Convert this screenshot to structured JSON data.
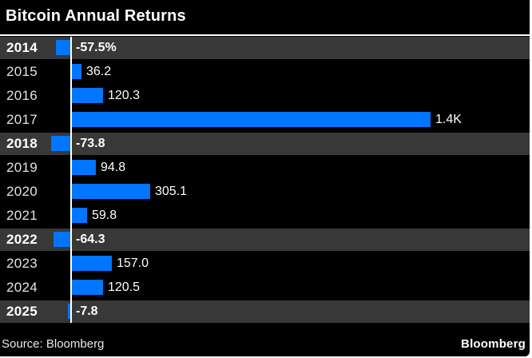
{
  "chart": {
    "title": "Bitcoin Annual Returns"
  },
  "chart_data": {
    "type": "bar",
    "orientation": "horizontal",
    "title": "Bitcoin Annual Returns",
    "unit": "%",
    "categories": [
      "2014",
      "2015",
      "2016",
      "2017",
      "2018",
      "2019",
      "2020",
      "2021",
      "2022",
      "2023",
      "2024",
      "2025"
    ],
    "values": [
      -57.5,
      36.2,
      120.3,
      1400,
      -73.8,
      94.8,
      305.1,
      59.8,
      -64.3,
      157.0,
      120.5,
      -7.8
    ],
    "value_labels": [
      "-57.5%",
      "36.2",
      "120.3",
      "1.4K",
      "-73.8",
      "94.8",
      "305.1",
      "59.8",
      "-64.3",
      "157.0",
      "120.5",
      "-7.8"
    ],
    "xlim": [
      -100,
      1400
    ],
    "grid": false,
    "legend": false,
    "bar_color": "#0076ff",
    "negative_row_bg": "#383838",
    "background_color": "#000000",
    "text_color": "#ffffff"
  },
  "footer": {
    "source": "Source: Bloomberg",
    "brand": "Bloomberg"
  }
}
